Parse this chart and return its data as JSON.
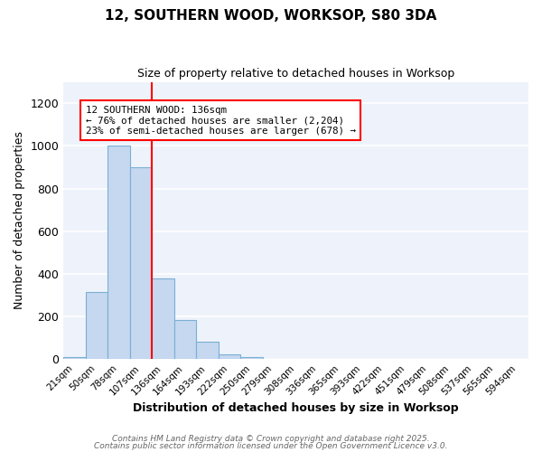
{
  "title1": "12, SOUTHERN WOOD, WORKSOP, S80 3DA",
  "title2": "Size of property relative to detached houses in Worksop",
  "xlabel": "Distribution of detached houses by size in Worksop",
  "ylabel": "Number of detached properties",
  "bin_labels": [
    "21sqm",
    "50sqm",
    "78sqm",
    "107sqm",
    "136sqm",
    "164sqm",
    "193sqm",
    "222sqm",
    "250sqm",
    "279sqm",
    "308sqm",
    "336sqm",
    "365sqm",
    "393sqm",
    "422sqm",
    "451sqm",
    "479sqm",
    "508sqm",
    "537sqm",
    "565sqm",
    "594sqm"
  ],
  "bar_values": [
    10,
    315,
    1000,
    900,
    380,
    183,
    80,
    22,
    8,
    1,
    0,
    0,
    0,
    0,
    0,
    0,
    0,
    0,
    0,
    0,
    0
  ],
  "bar_color": "#c5d8f0",
  "bar_edge_color": "#7aafd4",
  "bg_color": "#eef3fb",
  "grid_color": "#ffffff",
  "red_line_index": 4,
  "annotation_title": "12 SOUTHERN WOOD: 136sqm",
  "annotation_line1": "← 76% of detached houses are smaller (2,204)",
  "annotation_line2": "23% of semi-detached houses are larger (678) →",
  "ylim": [
    0,
    1300
  ],
  "yticks": [
    0,
    200,
    400,
    600,
    800,
    1000,
    1200
  ],
  "footer1": "Contains HM Land Registry data © Crown copyright and database right 2025.",
  "footer2": "Contains public sector information licensed under the Open Government Licence v3.0."
}
